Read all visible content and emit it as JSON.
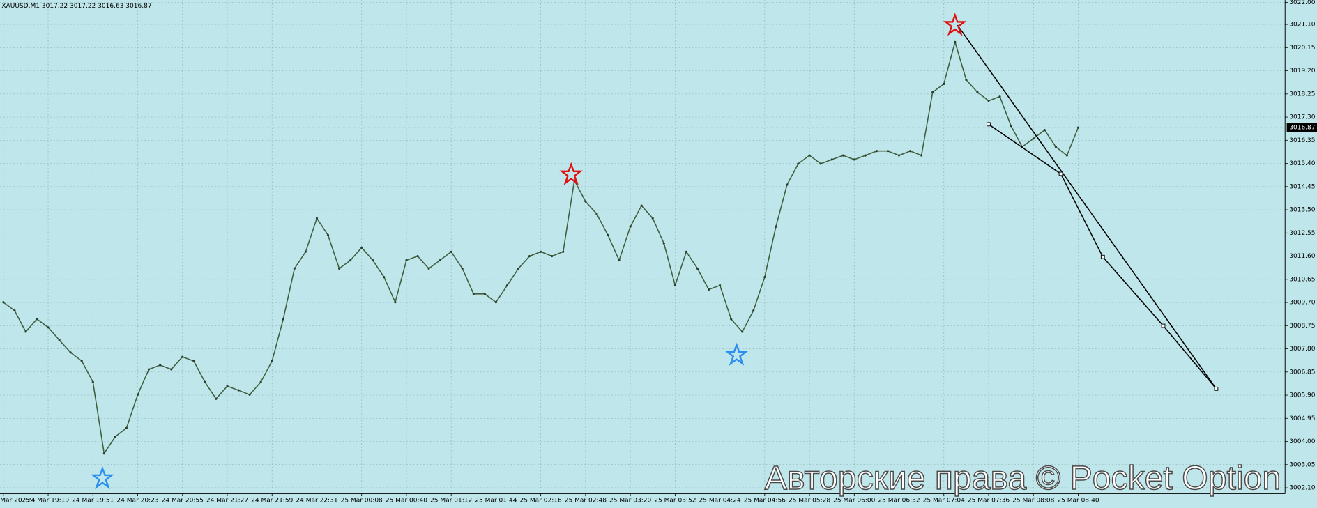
{
  "header": "XAUUSD,M1 3017.22 3017.22 3016.63 3016.87",
  "watermark": "Авторские права © Pocket Option",
  "chart_data": {
    "type": "line",
    "color": "#3f5f3f",
    "last_price": 3016.87,
    "ylim": [
      3001.86,
      3022.1
    ],
    "yticks": [
      {
        "value": 3022.0,
        "label": "3022.00"
      },
      {
        "value": 3021.1,
        "label": "3021.10"
      },
      3020.15,
      {
        "value": 3019.2,
        "label": "3019.20"
      },
      3018.25,
      {
        "value": 3017.3,
        "label": "3017.30"
      },
      3016.35,
      {
        "value": 3015.4,
        "label": "3015.40"
      },
      3014.45,
      {
        "value": 3013.5,
        "label": "3013.50"
      },
      3012.55,
      {
        "value": 3011.6,
        "label": "3011.60"
      },
      3010.65,
      {
        "value": 3009.7,
        "label": "3009.70"
      },
      3008.75,
      {
        "value": 3007.8,
        "label": "3007.80"
      },
      3006.85,
      {
        "value": 3005.9,
        "label": "3005.90"
      },
      3004.95,
      {
        "value": 3004.0,
        "label": "3004.00"
      },
      3003.05,
      {
        "value": 3002.1,
        "label": "3002.10"
      }
    ],
    "grid": true,
    "categories": [
      "24 Mar 2025",
      null,
      null,
      null,
      "24 Mar 19:19",
      null,
      null,
      null,
      "24 Mar 19:51",
      null,
      null,
      null,
      "24 Mar 20:23",
      null,
      null,
      null,
      "24 Mar 20:55",
      null,
      null,
      null,
      "24 Mar 21:27",
      null,
      null,
      null,
      "24 Mar 21:59",
      null,
      null,
      null,
      "24 Mar 22:31",
      null,
      null,
      null,
      "25 Mar 00:08",
      null,
      null,
      null,
      "25 Mar 00:40",
      null,
      null,
      null,
      "25 Mar 01:12",
      null,
      null,
      null,
      "25 Mar 01:44",
      null,
      null,
      null,
      "25 Mar 02:16",
      null,
      null,
      null,
      "25 Mar 02:48",
      null,
      null,
      null,
      "25 Mar 03:20",
      null,
      null,
      null,
      "25 Mar 03:52",
      null,
      null,
      null,
      "25 Mar 04:24",
      null,
      null,
      null,
      "25 Mar 04:56",
      null,
      null,
      null,
      "25 Mar 05:28",
      null,
      null,
      null,
      "25 Mar 06:00",
      null,
      null,
      null,
      "25 Mar 06:32",
      null,
      null,
      null,
      "25 Mar 07:04",
      null,
      null,
      null,
      "25 Mar 07:36",
      null,
      null,
      null,
      "25 Mar 08:08",
      null,
      null,
      null,
      "25 Mar 08:40"
    ],
    "values": [
      3009.71,
      3009.37,
      3008.5,
      3009.02,
      3008.68,
      3008.16,
      3007.65,
      3007.3,
      3006.44,
      3003.51,
      3004.2,
      3004.55,
      3005.92,
      3006.96,
      3007.13,
      3006.96,
      3007.47,
      3007.3,
      3006.44,
      3005.75,
      3006.27,
      3006.1,
      3005.92,
      3006.44,
      3007.3,
      3009.02,
      3011.09,
      3011.78,
      3013.15,
      3012.46,
      3011.09,
      3011.43,
      3011.95,
      3011.43,
      3010.74,
      3009.71,
      3011.43,
      3011.6,
      3011.09,
      3011.43,
      3011.78,
      3011.09,
      3010.05,
      3010.05,
      3009.71,
      3010.4,
      3011.09,
      3011.6,
      3011.78,
      3011.6,
      3011.78,
      3014.7,
      3013.84,
      3013.33,
      3012.46,
      3011.43,
      3012.81,
      3013.67,
      3013.15,
      3012.12,
      3010.4,
      3011.78,
      3011.09,
      3010.23,
      3010.4,
      3009.02,
      3008.5,
      3009.37,
      3010.74,
      3012.81,
      3014.53,
      3015.39,
      3015.73,
      3015.39,
      3015.56,
      3015.73,
      3015.56,
      3015.73,
      3015.91,
      3015.91,
      3015.73,
      3015.91,
      3015.73,
      3018.32,
      3018.66,
      3020.38,
      3018.83,
      3018.32,
      3017.97,
      3018.14,
      3016.94,
      3016.08,
      3016.42,
      3016.77,
      3016.08,
      3015.73,
      3016.87
    ]
  }
}
